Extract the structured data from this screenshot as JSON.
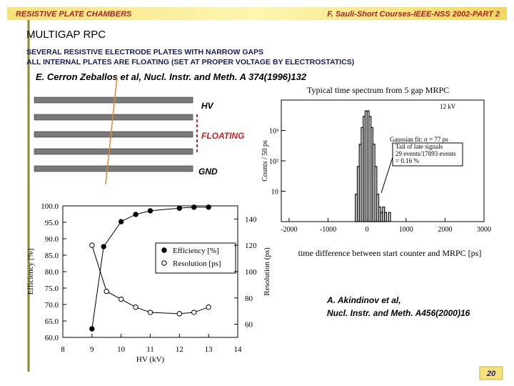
{
  "header": {
    "left": "RESISTIVE PLATE CHAMBERS",
    "right": "F. Sauli-Short Courses-IEEE-NSS 2002-PART 2"
  },
  "title": "MULTIGAP RPC",
  "body": [
    "SEVERAL RESISTIVE ELECTRODE PLATES WITH NARROW GAPS",
    "ALL INTERNAL PLATES ARE FLOATING (SET AT PROPER VOLTAGE BY ELECTROSTATICS)"
  ],
  "citations": [
    "E. Cerron Zeballos et al, Nucl. Instr. and Meth. A 374(1996)132",
    "A. Akindinov et al,",
    "Nucl. Instr. and Meth. A456(2000)16"
  ],
  "diagram": {
    "labels": [
      "HV",
      "FLOATING",
      "GND"
    ]
  },
  "page_number": "20",
  "chart_data": [
    {
      "type": "scatter",
      "x_label": "HV (kV)",
      "y_label": "Efficiency [%]",
      "y2_label": "Resolution (ps)",
      "xlim": [
        8,
        14
      ],
      "xticks": [
        8,
        9,
        10,
        11,
        12,
        13,
        14
      ],
      "ylim": [
        60,
        100
      ],
      "yticks": [
        {
          "value": 60,
          "label": "60.0"
        },
        {
          "value": 65,
          "label": "65.0"
        },
        {
          "value": 70,
          "label": "70.0"
        },
        {
          "value": 75,
          "label": "75.0"
        },
        {
          "value": 80,
          "label": "80.0"
        },
        {
          "value": 85,
          "label": "85.0"
        },
        {
          "value": 90,
          "label": "90.0"
        },
        {
          "value": 95,
          "label": "95.0"
        },
        {
          "value": 100,
          "label": "100.0"
        }
      ],
      "y2lim": [
        50,
        150
      ],
      "y2ticks": [
        60,
        80,
        100,
        120,
        140
      ],
      "series": [
        {
          "name": "Efficiency [%]",
          "color": "#000000",
          "marker": "filled",
          "x": [
            9,
            9.4,
            10,
            10.5,
            11,
            12,
            12.5,
            13
          ],
          "values": [
            62.6,
            87.6,
            95.2,
            97.4,
            98.5,
            99.3,
            99.6,
            99.6
          ]
        },
        {
          "name": "Resolution [ps]",
          "color": "#000000",
          "marker": "open",
          "axis": "y2",
          "x": [
            9,
            9.5,
            10,
            10.5,
            11,
            12,
            12.5,
            13
          ],
          "values": [
            120,
            85,
            79,
            73,
            69,
            68,
            69,
            73
          ]
        }
      ]
    },
    {
      "type": "histogram",
      "title": "Typical time spectrum from 5 gap MRPC",
      "x_label": "time difference between start counter and MRPC [ps]",
      "y_label": "Counts / 50 ps",
      "annotations": [
        "12 kV",
        "Gaussian fit: σ = 77 ps",
        "Tail of late signals",
        "29 events/17893 events",
        "= 0.16 %"
      ],
      "xlim": [
        -2200,
        3000
      ],
      "xticks": [
        -2000,
        -1000,
        0,
        1000,
        2000,
        3000
      ],
      "ylim": [
        1,
        10000
      ],
      "log_y": true,
      "yticks": [
        {
          "value": 10,
          "label": "10"
        },
        {
          "value": 100,
          "label": "10²"
        },
        {
          "value": 1000,
          "label": "10³"
        }
      ],
      "color": "#000000",
      "bins": [
        -300,
        -250,
        -200,
        -150,
        -100,
        -50,
        0,
        50,
        100,
        150,
        200,
        250,
        300,
        350,
        400,
        450,
        500,
        550,
        600,
        650,
        700,
        750,
        800
      ],
      "values": [
        8,
        65,
        352,
        1243,
        2893,
        4400,
        4400,
        2893,
        1243,
        352,
        65,
        8,
        3,
        2,
        3,
        2,
        1,
        2,
        1,
        1,
        1,
        1
      ]
    }
  ]
}
